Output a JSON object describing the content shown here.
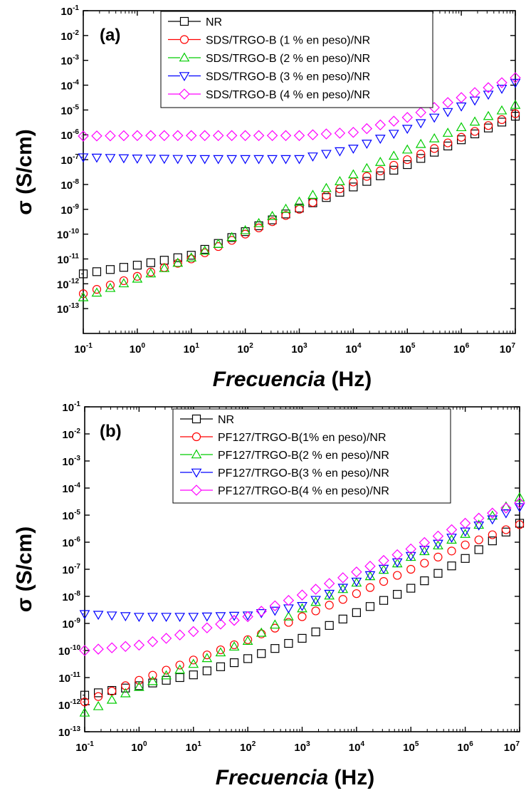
{
  "chart_data": [
    {
      "panel": "(a)",
      "type": "scatter",
      "xlabel_italic": "Frecuencia",
      "xlabel_unit": "(Hz)",
      "ylabel": "σ (S/cm)",
      "xscale": "log",
      "yscale": "log",
      "xlim": [
        0.1,
        10000000
      ],
      "ylim": [
        1e-14,
        0.1
      ],
      "x_ticks": [
        "10^-1",
        "10^0",
        "10^1",
        "10^2",
        "10^3",
        "10^4",
        "10^5",
        "10^6",
        "10^7"
      ],
      "y_ticks": [
        "10^-1",
        "10^-2",
        "10^-3",
        "10^-4",
        "10^-5",
        "10^-6",
        "10^-7",
        "10^-8",
        "10^-9",
        "10^-10",
        "10^-11",
        "10^-12",
        "10^-13"
      ],
      "legend_position": "top-right",
      "points_per_decade": 4,
      "series": [
        {
          "name": "NR",
          "marker": "square",
          "color": "#000000",
          "x_log10_range": [
            -1,
            7
          ],
          "y_log10_at": [
            [
              -1,
              -11.6
            ],
            [
              0,
              -11.25
            ],
            [
              1,
              -10.85
            ],
            [
              2,
              -9.9
            ],
            [
              3,
              -8.95
            ],
            [
              4,
              -8.1
            ],
            [
              5,
              -7.2
            ],
            [
              6,
              -6.2
            ],
            [
              7,
              -5.25
            ]
          ]
        },
        {
          "name": "SDS/TRGO-B (1 % en peso)/NR",
          "marker": "circle",
          "color": "#ff0000",
          "x_log10_range": [
            -1,
            7
          ],
          "y_log10_at": [
            [
              -1,
              -12.4
            ],
            [
              0,
              -11.7
            ],
            [
              1,
              -11.0
            ],
            [
              2,
              -10.0
            ],
            [
              3,
              -9.0
            ],
            [
              4,
              -7.9
            ],
            [
              5,
              -7.0
            ],
            [
              6,
              -6.1
            ],
            [
              7,
              -5.15
            ]
          ]
        },
        {
          "name": "SDS/TRGO-B (2 % en peso)/NR",
          "marker": "triangle-up",
          "color": "#00cc00",
          "x_log10_range": [
            -1,
            7
          ],
          "y_log10_at": [
            [
              -1,
              -12.55
            ],
            [
              0,
              -11.8
            ],
            [
              1,
              -10.95
            ],
            [
              2,
              -9.85
            ],
            [
              3,
              -8.7
            ],
            [
              4,
              -7.6
            ],
            [
              5,
              -6.6
            ],
            [
              6,
              -5.7
            ],
            [
              7,
              -4.8
            ]
          ]
        },
        {
          "name": "SDS/TRGO-B (3 % en peso)/NR",
          "marker": "triangle-down",
          "color": "#0000ff",
          "x_log10_range": [
            -1,
            7
          ],
          "y_log10_at": [
            [
              -1,
              -6.9
            ],
            [
              0,
              -6.95
            ],
            [
              1,
              -6.97
            ],
            [
              2,
              -6.97
            ],
            [
              3,
              -6.97
            ],
            [
              4,
              -6.55
            ],
            [
              5,
              -5.75
            ],
            [
              6,
              -4.85
            ],
            [
              7,
              -3.9
            ]
          ]
        },
        {
          "name": "SDS/TRGO-B (4 % en peso)/NR",
          "marker": "diamond",
          "color": "#ff00ff",
          "x_log10_range": [
            -1,
            7
          ],
          "y_log10_at": [
            [
              -1,
              -6.05
            ],
            [
              0,
              -6.03
            ],
            [
              1,
              -6.03
            ],
            [
              2,
              -6.03
            ],
            [
              3,
              -6.03
            ],
            [
              4,
              -5.9
            ],
            [
              5,
              -5.3
            ],
            [
              6,
              -4.5
            ],
            [
              7,
              -3.7
            ]
          ]
        }
      ]
    },
    {
      "panel": "(b)",
      "type": "scatter",
      "xlabel_italic": "Frecuencia",
      "xlabel_unit": "(Hz)",
      "ylabel": "σ (S/cm)",
      "xscale": "log",
      "yscale": "log",
      "xlim": [
        0.1,
        10000000
      ],
      "ylim": [
        1e-13,
        0.1
      ],
      "x_ticks": [
        "10^-1",
        "10^0",
        "10^1",
        "10^2",
        "10^3",
        "10^4",
        "10^5",
        "10^6",
        "10^7"
      ],
      "y_ticks": [
        "10^-1",
        "10^-2",
        "10^-3",
        "10^-4",
        "10^-5",
        "10^-6",
        "10^-7",
        "10^-8",
        "10^-9",
        "10^-10",
        "10^-11",
        "10^-12",
        "10^-13"
      ],
      "legend_position": "top-right",
      "points_per_decade": 4,
      "series": [
        {
          "name": "NR",
          "marker": "square",
          "color": "#000000",
          "x_log10_range": [
            -1,
            7
          ],
          "y_log10_at": [
            [
              -1,
              -11.65
            ],
            [
              0,
              -11.3
            ],
            [
              1,
              -10.9
            ],
            [
              2,
              -10.3
            ],
            [
              3,
              -9.55
            ],
            [
              4,
              -8.6
            ],
            [
              5,
              -7.7
            ],
            [
              6,
              -6.6
            ],
            [
              7,
              -5.3
            ]
          ]
        },
        {
          "name": "PF127/TRGO-B(1% en peso)/NR",
          "marker": "circle",
          "color": "#ff0000",
          "x_log10_range": [
            -1,
            7
          ],
          "y_log10_at": [
            [
              -1,
              -11.9
            ],
            [
              0,
              -11.1
            ],
            [
              1,
              -10.35
            ],
            [
              2,
              -9.6
            ],
            [
              3,
              -8.75
            ],
            [
              4,
              -7.9
            ],
            [
              5,
              -7.0
            ],
            [
              6,
              -6.1
            ],
            [
              7,
              -5.35
            ]
          ]
        },
        {
          "name": "PF127/TRGO-B(2 % en peso)/NR",
          "marker": "triangle-up",
          "color": "#00cc00",
          "x_log10_range": [
            -1,
            7
          ],
          "y_log10_at": [
            [
              -1,
              -12.3
            ],
            [
              0,
              -11.35
            ],
            [
              1,
              -10.5
            ],
            [
              2,
              -9.65
            ],
            [
              3,
              -8.45
            ],
            [
              4,
              -7.5
            ],
            [
              5,
              -6.55
            ],
            [
              6,
              -5.7
            ],
            [
              7,
              -4.35
            ]
          ]
        },
        {
          "name": "PF127/TRGO-B(3 % en peso)/NR",
          "marker": "triangle-down",
          "color": "#0000ff",
          "x_log10_range": [
            -1,
            7
          ],
          "y_log10_at": [
            [
              -1,
              -8.65
            ],
            [
              0,
              -8.75
            ],
            [
              1,
              -8.75
            ],
            [
              2,
              -8.7
            ],
            [
              3,
              -8.35
            ],
            [
              4,
              -7.45
            ],
            [
              5,
              -6.5
            ],
            [
              6,
              -5.6
            ],
            [
              7,
              -4.7
            ]
          ]
        },
        {
          "name": "PF127/TRGO-B(4 % en peso)/NR",
          "marker": "diamond",
          "color": "#ff00ff",
          "x_log10_range": [
            -1,
            7
          ],
          "y_log10_at": [
            [
              -1,
              -10.0
            ],
            [
              0,
              -9.8
            ],
            [
              1,
              -9.3
            ],
            [
              2,
              -8.75
            ],
            [
              3,
              -7.95
            ],
            [
              4,
              -7.1
            ],
            [
              5,
              -6.25
            ],
            [
              6,
              -5.3
            ],
            [
              7,
              -4.55
            ]
          ]
        }
      ]
    }
  ]
}
